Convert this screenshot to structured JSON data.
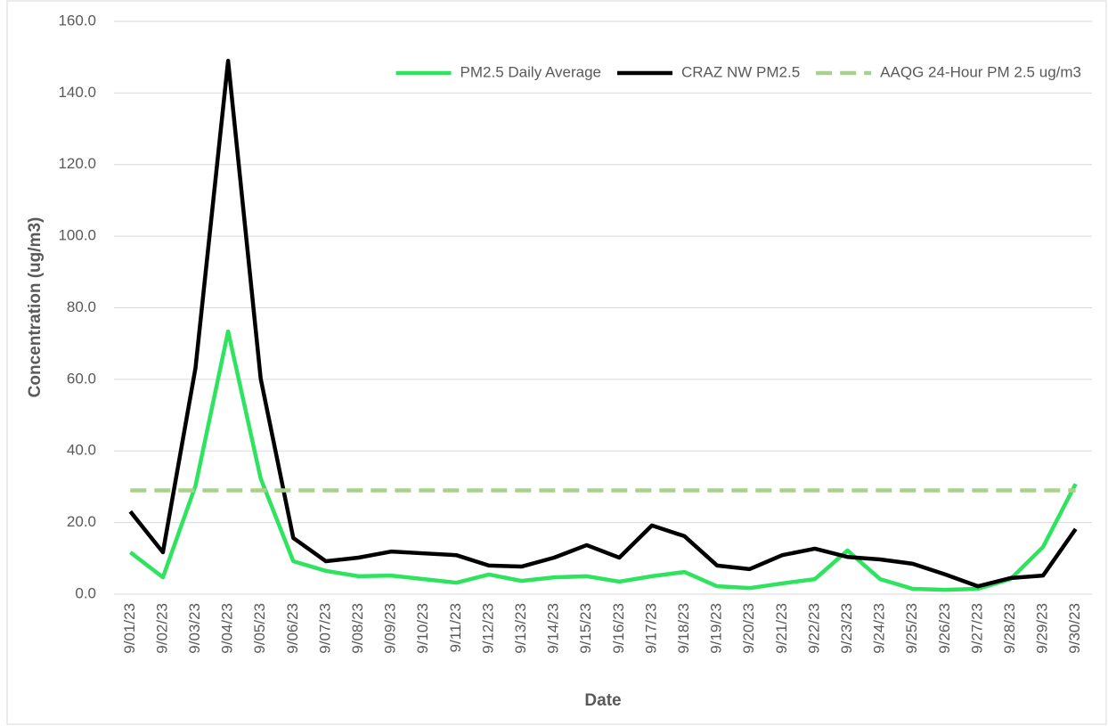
{
  "chart_data": {
    "type": "line",
    "x_label": "Date",
    "y_label": "Concentration (ug/m3)",
    "categories": [
      "9/01/23",
      "9/02/23",
      "9/03/23",
      "9/04/23",
      "9/05/23",
      "9/06/23",
      "9/07/23",
      "9/08/23",
      "9/09/23",
      "9/10/23",
      "9/11/23",
      "9/12/23",
      "9/13/23",
      "9/14/23",
      "9/15/23",
      "9/16/23",
      "9/17/23",
      "9/18/23",
      "9/19/23",
      "9/20/23",
      "9/21/23",
      "9/22/23",
      "9/23/23",
      "9/24/23",
      "9/25/23",
      "9/26/23",
      "9/27/23",
      "9/28/23",
      "9/29/23",
      "9/30/23"
    ],
    "series": [
      {
        "name": "PM2.5 Daily Average",
        "color": "#2ee35e",
        "dashed": false,
        "values": [
          11.7,
          4.7,
          30.3,
          73.4,
          32.3,
          9.2,
          6.5,
          5.0,
          5.2,
          4.2,
          3.2,
          5.5,
          3.7,
          4.7,
          5.0,
          3.5,
          5.0,
          6.2,
          2.2,
          1.7,
          3.0,
          4.2,
          12.2,
          4.2,
          1.5,
          1.2,
          1.5,
          4.2,
          13.2,
          30.8
        ]
      },
      {
        "name": "CRAZ NW PM2.5",
        "color": "#000000",
        "dashed": false,
        "values": [
          23.1,
          11.7,
          63.2,
          149.0,
          60.2,
          15.7,
          9.2,
          10.2,
          11.9,
          11.4,
          10.9,
          8.0,
          7.7,
          10.2,
          13.7,
          10.2,
          19.2,
          16.2,
          8.0,
          7.0,
          10.9,
          12.7,
          10.4,
          9.7,
          8.5,
          5.5,
          2.2,
          4.5,
          5.2,
          18.2
        ]
      },
      {
        "name": "AAQG 24-Hour PM 2.5 ug/m3",
        "color": "#a9d18e",
        "dashed": true,
        "values": [
          29,
          29,
          29,
          29,
          29,
          29,
          29,
          29,
          29,
          29,
          29,
          29,
          29,
          29,
          29,
          29,
          29,
          29,
          29,
          29,
          29,
          29,
          29,
          29,
          29,
          29,
          29,
          29,
          29,
          29
        ]
      }
    ],
    "ylim": [
      0,
      160
    ],
    "yticks": [
      {
        "value": 0,
        "label": "0.0"
      },
      {
        "value": 20,
        "label": "20.0"
      },
      {
        "value": 40,
        "label": "40.0"
      },
      {
        "value": 60,
        "label": "60.0"
      },
      {
        "value": 80,
        "label": "80.0"
      },
      {
        "value": 100,
        "label": "100.0"
      },
      {
        "value": 120,
        "label": "120.0"
      },
      {
        "value": 140,
        "label": "140.0"
      },
      {
        "value": 160,
        "label": "160.0"
      }
    ],
    "grid": true,
    "legend": "upper right"
  }
}
